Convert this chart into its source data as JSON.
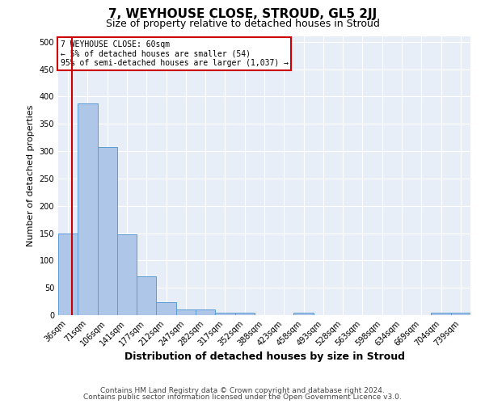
{
  "title": "7, WEYHOUSE CLOSE, STROUD, GL5 2JJ",
  "subtitle": "Size of property relative to detached houses in Stroud",
  "xlabel": "Distribution of detached houses by size in Stroud",
  "ylabel": "Number of detached properties",
  "categories": [
    "36sqm",
    "71sqm",
    "106sqm",
    "141sqm",
    "177sqm",
    "212sqm",
    "247sqm",
    "282sqm",
    "317sqm",
    "352sqm",
    "388sqm",
    "423sqm",
    "458sqm",
    "493sqm",
    "528sqm",
    "563sqm",
    "598sqm",
    "634sqm",
    "669sqm",
    "704sqm",
    "739sqm"
  ],
  "values": [
    150,
    387,
    308,
    148,
    71,
    24,
    10,
    10,
    5,
    5,
    0,
    0,
    5,
    0,
    0,
    0,
    0,
    0,
    0,
    5,
    5
  ],
  "bar_color": "#aec6e8",
  "bar_edge_color": "#5b9bd5",
  "background_color": "#e8eef7",
  "grid_color": "#ffffff",
  "vline_color": "#cc0000",
  "ylim": [
    0,
    510
  ],
  "annotation_text": "7 WEYHOUSE CLOSE: 60sqm\n← 5% of detached houses are smaller (54)\n95% of semi-detached houses are larger (1,037) →",
  "annotation_box_color": "#ffffff",
  "annotation_box_edge": "#cc0000",
  "footer1": "Contains HM Land Registry data © Crown copyright and database right 2024.",
  "footer2": "Contains public sector information licensed under the Open Government Licence v3.0.",
  "title_fontsize": 11,
  "subtitle_fontsize": 9,
  "xlabel_fontsize": 9,
  "ylabel_fontsize": 8,
  "tick_fontsize": 7,
  "footer_fontsize": 6.5
}
